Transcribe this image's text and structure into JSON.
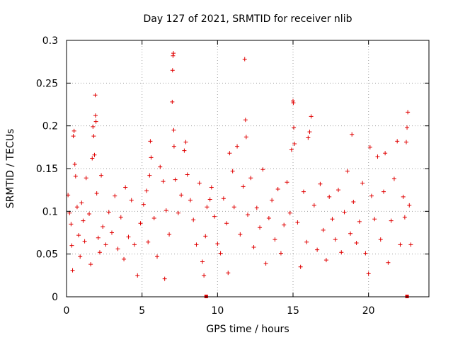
{
  "chart_data": {
    "type": "scatter",
    "title": "Day 127 of 2021, SRMTID for receiver nlib",
    "xlabel": "GPS time / hours",
    "ylabel": "SRMTID / TECUs",
    "xlim": [
      0,
      24
    ],
    "ylim": [
      0,
      0.3
    ],
    "x_ticks": [
      0,
      5,
      10,
      15,
      20
    ],
    "x_tick_labels": [
      "0",
      "5",
      "10",
      "15",
      "20"
    ],
    "y_ticks": [
      0,
      0.05,
      0.1,
      0.15,
      0.2,
      0.25,
      0.3
    ],
    "y_tick_labels": [
      "0",
      "0.05",
      "0.1",
      "0.15",
      "0.2",
      "0.25",
      "0.3"
    ],
    "grid": true,
    "marker": "plus",
    "series_color": "#e00000",
    "axis_markers_x": [
      9.25,
      22.55
    ],
    "series": [
      {
        "name": "SRMTID",
        "points": [
          [
            0.1,
            0.119
          ],
          [
            0.2,
            0.098
          ],
          [
            0.3,
            0.085
          ],
          [
            0.35,
            0.06
          ],
          [
            0.4,
            0.031
          ],
          [
            0.45,
            0.188
          ],
          [
            0.5,
            0.194
          ],
          [
            0.55,
            0.155
          ],
          [
            0.6,
            0.141
          ],
          [
            0.7,
            0.105
          ],
          [
            0.8,
            0.072
          ],
          [
            0.9,
            0.047
          ],
          [
            1.0,
            0.11
          ],
          [
            1.1,
            0.089
          ],
          [
            1.2,
            0.065
          ],
          [
            1.3,
            0.139
          ],
          [
            1.5,
            0.097
          ],
          [
            1.6,
            0.038
          ],
          [
            1.7,
            0.162
          ],
          [
            1.75,
            0.199
          ],
          [
            1.8,
            0.188
          ],
          [
            1.85,
            0.166
          ],
          [
            1.9,
            0.236
          ],
          [
            1.92,
            0.212
          ],
          [
            1.95,
            0.205
          ],
          [
            2.0,
            0.121
          ],
          [
            2.1,
            0.069
          ],
          [
            2.2,
            0.052
          ],
          [
            2.3,
            0.142
          ],
          [
            2.4,
            0.082
          ],
          [
            2.6,
            0.061
          ],
          [
            2.8,
            0.099
          ],
          [
            3.0,
            0.075
          ],
          [
            3.2,
            0.118
          ],
          [
            3.4,
            0.056
          ],
          [
            3.6,
            0.093
          ],
          [
            3.8,
            0.044
          ],
          [
            3.9,
            0.128
          ],
          [
            4.1,
            0.07
          ],
          [
            4.3,
            0.113
          ],
          [
            4.5,
            0.061
          ],
          [
            4.7,
            0.025
          ],
          [
            4.9,
            0.086
          ],
          [
            5.1,
            0.108
          ],
          [
            5.3,
            0.124
          ],
          [
            5.4,
            0.064
          ],
          [
            5.5,
            0.142
          ],
          [
            5.55,
            0.182
          ],
          [
            5.6,
            0.163
          ],
          [
            5.8,
            0.092
          ],
          [
            6.0,
            0.047
          ],
          [
            6.2,
            0.152
          ],
          [
            6.4,
            0.135
          ],
          [
            6.5,
            0.021
          ],
          [
            6.6,
            0.101
          ],
          [
            6.8,
            0.073
          ],
          [
            7.0,
            0.228
          ],
          [
            7.02,
            0.265
          ],
          [
            7.05,
            0.282
          ],
          [
            7.08,
            0.285
          ],
          [
            7.1,
            0.195
          ],
          [
            7.12,
            0.176
          ],
          [
            7.2,
            0.137
          ],
          [
            7.4,
            0.098
          ],
          [
            7.6,
            0.119
          ],
          [
            7.8,
            0.171
          ],
          [
            7.9,
            0.181
          ],
          [
            8.0,
            0.143
          ],
          [
            8.2,
            0.113
          ],
          [
            8.4,
            0.09
          ],
          [
            8.6,
            0.061
          ],
          [
            8.8,
            0.133
          ],
          [
            9.0,
            0.041
          ],
          [
            9.1,
            0.025
          ],
          [
            9.2,
            0.071
          ],
          [
            9.3,
            0.105
          ],
          [
            9.5,
            0.114
          ],
          [
            9.6,
            0.128
          ],
          [
            9.8,
            0.094
          ],
          [
            10.0,
            0.062
          ],
          [
            10.2,
            0.051
          ],
          [
            10.4,
            0.115
          ],
          [
            10.6,
            0.086
          ],
          [
            10.7,
            0.028
          ],
          [
            10.8,
            0.168
          ],
          [
            11.0,
            0.147
          ],
          [
            11.1,
            0.105
          ],
          [
            11.3,
            0.176
          ],
          [
            11.5,
            0.073
          ],
          [
            11.7,
            0.129
          ],
          [
            11.8,
            0.278
          ],
          [
            11.85,
            0.207
          ],
          [
            11.9,
            0.187
          ],
          [
            12.0,
            0.096
          ],
          [
            12.2,
            0.139
          ],
          [
            12.4,
            0.058
          ],
          [
            12.6,
            0.104
          ],
          [
            12.8,
            0.081
          ],
          [
            13.0,
            0.149
          ],
          [
            13.2,
            0.039
          ],
          [
            13.4,
            0.092
          ],
          [
            13.6,
            0.113
          ],
          [
            13.8,
            0.067
          ],
          [
            14.0,
            0.126
          ],
          [
            14.2,
            0.051
          ],
          [
            14.4,
            0.084
          ],
          [
            14.6,
            0.134
          ],
          [
            14.8,
            0.098
          ],
          [
            14.9,
            0.172
          ],
          [
            15.0,
            0.229
          ],
          [
            15.02,
            0.227
          ],
          [
            15.05,
            0.198
          ],
          [
            15.1,
            0.179
          ],
          [
            15.3,
            0.087
          ],
          [
            15.5,
            0.035
          ],
          [
            15.7,
            0.123
          ],
          [
            15.9,
            0.064
          ],
          [
            16.0,
            0.186
          ],
          [
            16.1,
            0.193
          ],
          [
            16.2,
            0.211
          ],
          [
            16.4,
            0.107
          ],
          [
            16.6,
            0.055
          ],
          [
            16.8,
            0.132
          ],
          [
            17.0,
            0.078
          ],
          [
            17.2,
            0.043
          ],
          [
            17.4,
            0.117
          ],
          [
            17.6,
            0.091
          ],
          [
            17.8,
            0.067
          ],
          [
            18.0,
            0.125
          ],
          [
            18.2,
            0.052
          ],
          [
            18.4,
            0.099
          ],
          [
            18.6,
            0.147
          ],
          [
            18.8,
            0.074
          ],
          [
            18.9,
            0.19
          ],
          [
            19.0,
            0.111
          ],
          [
            19.2,
            0.063
          ],
          [
            19.4,
            0.088
          ],
          [
            19.6,
            0.133
          ],
          [
            19.8,
            0.051
          ],
          [
            20.0,
            0.027
          ],
          [
            20.1,
            0.175
          ],
          [
            20.2,
            0.118
          ],
          [
            20.4,
            0.091
          ],
          [
            20.6,
            0.164
          ],
          [
            20.8,
            0.067
          ],
          [
            21.0,
            0.123
          ],
          [
            21.1,
            0.168
          ],
          [
            21.3,
            0.04
          ],
          [
            21.5,
            0.089
          ],
          [
            21.7,
            0.138
          ],
          [
            21.9,
            0.182
          ],
          [
            22.1,
            0.061
          ],
          [
            22.3,
            0.117
          ],
          [
            22.4,
            0.093
          ],
          [
            22.5,
            0.181
          ],
          [
            22.55,
            0.198
          ],
          [
            22.6,
            0.216
          ],
          [
            22.7,
            0.107
          ],
          [
            22.8,
            0.061
          ]
        ]
      }
    ]
  }
}
